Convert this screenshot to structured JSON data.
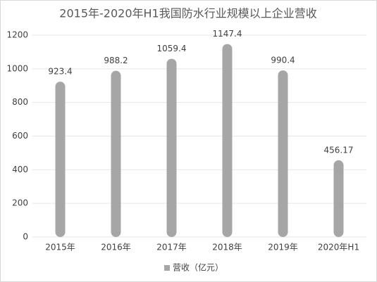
{
  "chart_data": {
    "type": "bar",
    "title": "2015年-2020年H1我国防水行业规模以上企业营收",
    "categories": [
      "2015年",
      "2016年",
      "2017年",
      "2018年",
      "2019年",
      "2020年H1"
    ],
    "series": [
      {
        "name": "营收（亿元）",
        "color": "#a6a6a6",
        "values": [
          923.4,
          988.2,
          1059.4,
          1147.4,
          990.4,
          456.17
        ]
      }
    ],
    "ylim": [
      0,
      1200
    ],
    "yticks": [
      0,
      200,
      400,
      600,
      800,
      1000,
      1200
    ],
    "grid": true,
    "legend": "bottom"
  }
}
